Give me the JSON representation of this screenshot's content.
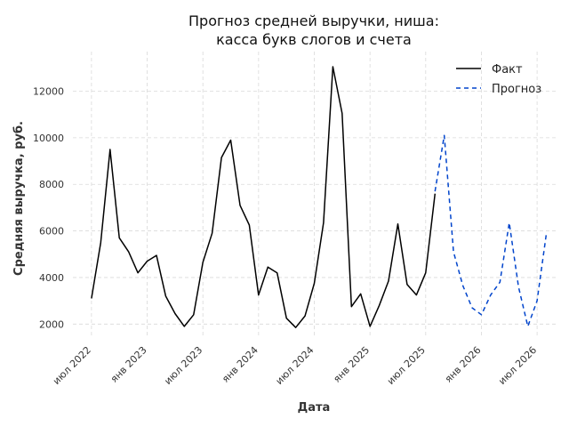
{
  "chart_data": {
    "type": "line",
    "title_lines": [
      "Прогноз средней выручки, ниша:",
      "касса букв слогов и счета"
    ],
    "xlabel": "Дата",
    "ylabel": "Средняя выручка, руб.",
    "ylim": [
      1400,
      13700
    ],
    "yticks": [
      2000,
      4000,
      6000,
      8000,
      10000,
      12000
    ],
    "x_ticks": [
      {
        "date": "2022-07",
        "label": "июл 2022"
      },
      {
        "date": "2023-01",
        "label": "янв 2023"
      },
      {
        "date": "2023-07",
        "label": "июл 2023"
      },
      {
        "date": "2024-01",
        "label": "янв 2024"
      },
      {
        "date": "2024-07",
        "label": "июл 2024"
      },
      {
        "date": "2025-01",
        "label": "янв 2025"
      },
      {
        "date": "2025-07",
        "label": "июл 2025"
      },
      {
        "date": "2026-01",
        "label": "янв 2026"
      },
      {
        "date": "2026-07",
        "label": "июл 2026"
      }
    ],
    "xlim": [
      "2022-05",
      "2026-09"
    ],
    "grid": true,
    "legend_position": "top-right",
    "series": [
      {
        "name": "Факт",
        "color": "#000000",
        "style": "solid",
        "points": [
          [
            "2022-07",
            3100
          ],
          [
            "2022-08",
            5500
          ],
          [
            "2022-09",
            9500
          ],
          [
            "2022-10",
            5700
          ],
          [
            "2022-11",
            5100
          ],
          [
            "2022-12",
            4200
          ],
          [
            "2023-01",
            4700
          ],
          [
            "2023-02",
            4950
          ],
          [
            "2023-03",
            3200
          ],
          [
            "2023-04",
            2450
          ],
          [
            "2023-05",
            1900
          ],
          [
            "2023-06",
            2400
          ],
          [
            "2023-07",
            4650
          ],
          [
            "2023-08",
            5900
          ],
          [
            "2023-09",
            9150
          ],
          [
            "2023-10",
            9900
          ],
          [
            "2023-11",
            7100
          ],
          [
            "2023-12",
            6250
          ],
          [
            "2024-01",
            3250
          ],
          [
            "2024-02",
            4450
          ],
          [
            "2024-03",
            4200
          ],
          [
            "2024-04",
            2250
          ],
          [
            "2024-05",
            1850
          ],
          [
            "2024-06",
            2350
          ],
          [
            "2024-07",
            3750
          ],
          [
            "2024-08",
            6350
          ],
          [
            "2024-09",
            13050
          ],
          [
            "2024-10",
            11050
          ],
          [
            "2024-11",
            2750
          ],
          [
            "2024-12",
            3300
          ],
          [
            "2025-01",
            1900
          ],
          [
            "2025-02",
            2800
          ],
          [
            "2025-03",
            3850
          ],
          [
            "2025-04",
            6300
          ],
          [
            "2025-05",
            3700
          ],
          [
            "2025-06",
            3250
          ],
          [
            "2025-07",
            4200
          ],
          [
            "2025-08",
            7600
          ]
        ]
      },
      {
        "name": "Прогноз",
        "color": "#0044cc",
        "style": "dashed",
        "points": [
          [
            "2025-08",
            7700
          ],
          [
            "2025-09",
            10100
          ],
          [
            "2025-10",
            5100
          ],
          [
            "2025-11",
            3650
          ],
          [
            "2025-12",
            2700
          ],
          [
            "2026-01",
            2400
          ],
          [
            "2026-02",
            3250
          ],
          [
            "2026-03",
            3800
          ],
          [
            "2026-04",
            6350
          ],
          [
            "2026-05",
            3600
          ],
          [
            "2026-06",
            1900
          ],
          [
            "2026-07",
            3000
          ],
          [
            "2026-08",
            5900
          ]
        ]
      }
    ]
  }
}
